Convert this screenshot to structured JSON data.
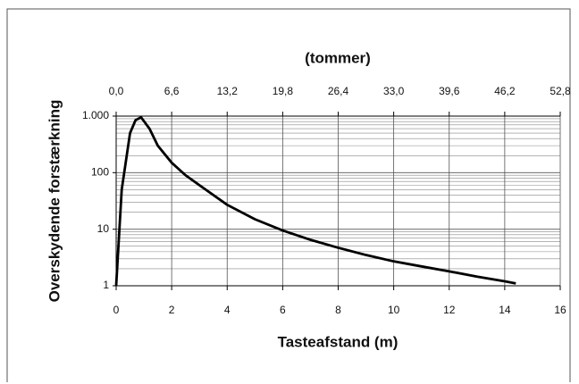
{
  "chart_data": {
    "type": "line",
    "x_title": "Tasteafstand (m)",
    "x2_title": "(tommer)",
    "y_title": "Overskydende forstærkning",
    "xlim": [
      0,
      16
    ],
    "xticks": [
      0,
      2,
      4,
      6,
      8,
      10,
      12,
      14,
      16
    ],
    "x2lim": [
      0,
      52.8
    ],
    "x2ticks": [
      {
        "value": 0,
        "label": "0,0"
      },
      {
        "value": 6.6,
        "label": "6,6"
      },
      {
        "value": 13.2,
        "label": "13,2"
      },
      {
        "value": 19.8,
        "label": "19,8"
      },
      {
        "value": 26.4,
        "label": "26,4"
      },
      {
        "value": 33,
        "label": "33,0"
      },
      {
        "value": 39.6,
        "label": "39,6"
      },
      {
        "value": 46.2,
        "label": "46,2"
      },
      {
        "value": 52.8,
        "label": "52,8"
      }
    ],
    "ylim": [
      1,
      1000
    ],
    "yticks": [
      1,
      10,
      100,
      {
        "value": 1000,
        "label": "1.000"
      }
    ],
    "log_y": true,
    "grid": true,
    "series": [
      {
        "color": "#000000",
        "x": [
          0,
          0.2,
          0.5,
          0.7,
          0.9,
          1.2,
          1.5,
          2,
          2.5,
          3,
          4,
          5,
          6,
          7,
          8,
          9,
          10,
          11,
          12,
          13,
          14,
          14.4
        ],
        "values": [
          1,
          50,
          500,
          850,
          950,
          600,
          300,
          150,
          90,
          60,
          27,
          15,
          9.5,
          6.5,
          4.7,
          3.5,
          2.7,
          2.2,
          1.8,
          1.45,
          1.2,
          1.1
        ]
      }
    ]
  }
}
